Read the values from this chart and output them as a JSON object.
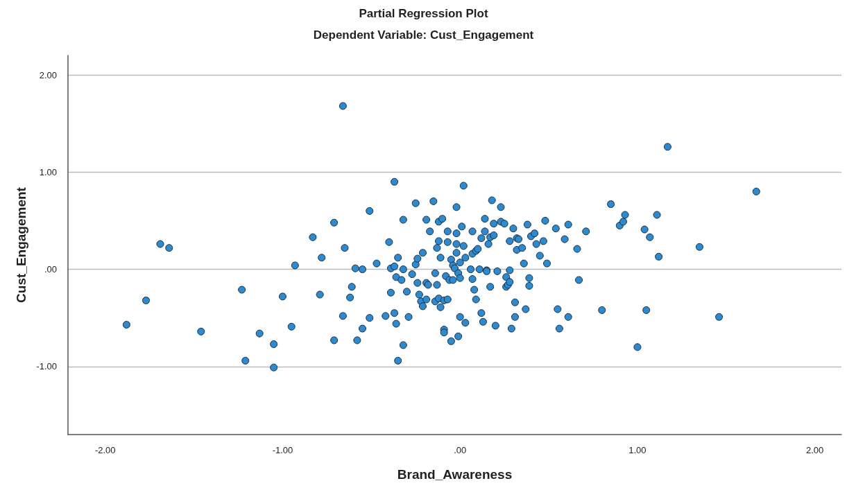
{
  "chart_data": {
    "type": "scatter",
    "title": "Partial Regression Plot",
    "subtitle": "Dependent Variable: Cust_Engagement",
    "xlabel": "Brand_Awareness",
    "ylabel": "Cust_Engagement",
    "xlim": [
      -2.21,
      2.15
    ],
    "ylim": [
      -1.7,
      2.2
    ],
    "xticks": [
      {
        "value": -2,
        "label": "-2.00"
      },
      {
        "value": -1,
        "label": "-1.00"
      },
      {
        "value": 0,
        "label": ".00"
      },
      {
        "value": 1,
        "label": "1.00"
      },
      {
        "value": 2,
        "label": "2.00"
      }
    ],
    "yticks": [
      {
        "value": -1,
        "label": "-1.00"
      },
      {
        "value": 0,
        "label": ".00"
      },
      {
        "value": 1,
        "label": "1.00"
      },
      {
        "value": 2,
        "label": "2.00"
      }
    ],
    "grid": "y",
    "marker": "circle",
    "series": [
      {
        "color": "#2a8ad2",
        "x": [
          -1.88,
          -1.77,
          -1.69,
          -1.64,
          -1.46,
          -1.23,
          -1.21,
          -1.13,
          -1.05,
          -1.05,
          -1.0,
          -0.95,
          -0.93,
          -0.83,
          -0.79,
          -0.78,
          -0.71,
          -0.71,
          -0.66,
          -0.66,
          -0.65,
          -0.62,
          -0.61,
          -0.59,
          -0.58,
          -0.55,
          -0.55,
          -0.51,
          -0.51,
          -0.47,
          -0.42,
          -0.4,
          -0.39,
          -0.39,
          -0.37,
          -0.37,
          -0.37,
          -0.36,
          -0.36,
          -0.35,
          -0.35,
          -0.33,
          -0.32,
          -0.32,
          -0.32,
          -0.3,
          -0.29,
          -0.27,
          -0.25,
          -0.25,
          -0.24,
          -0.24,
          -0.23,
          -0.22,
          -0.21,
          -0.21,
          -0.19,
          -0.19,
          -0.19,
          -0.18,
          -0.17,
          -0.15,
          -0.14,
          -0.14,
          -0.13,
          -0.13,
          -0.12,
          -0.12,
          -0.12,
          -0.11,
          -0.11,
          -0.1,
          -0.09,
          -0.09,
          -0.09,
          -0.08,
          -0.07,
          -0.07,
          -0.07,
          -0.06,
          -0.05,
          -0.05,
          -0.04,
          -0.04,
          -0.03,
          -0.02,
          -0.02,
          -0.02,
          -0.02,
          -0.01,
          -0.01,
          0.0,
          0.0,
          0.0,
          0.01,
          0.02,
          0.02,
          0.03,
          0.03,
          0.06,
          0.07,
          0.07,
          0.07,
          0.08,
          0.09,
          0.09,
          0.1,
          0.11,
          0.12,
          0.12,
          0.13,
          0.14,
          0.14,
          0.15,
          0.15,
          0.16,
          0.17,
          0.17,
          0.18,
          0.19,
          0.19,
          0.2,
          0.21,
          0.23,
          0.23,
          0.25,
          0.26,
          0.26,
          0.27,
          0.28,
          0.28,
          0.28,
          0.29,
          0.3,
          0.31,
          0.31,
          0.32,
          0.32,
          0.33,
          0.35,
          0.36,
          0.37,
          0.38,
          0.39,
          0.39,
          0.4,
          0.42,
          0.43,
          0.45,
          0.47,
          0.48,
          0.49,
          0.54,
          0.55,
          0.56,
          0.59,
          0.61,
          0.61,
          0.66,
          0.67,
          0.71,
          0.8,
          0.85,
          0.9,
          0.92,
          0.93,
          1.0,
          1.04,
          1.05,
          1.07,
          1.11,
          1.12,
          1.17,
          1.35,
          1.46,
          1.67
        ],
        "values": [
          -0.57,
          -0.32,
          0.26,
          0.22,
          -0.64,
          -0.21,
          -0.94,
          -0.66,
          -1.01,
          -0.77,
          -0.28,
          -0.59,
          0.04,
          0.33,
          -0.26,
          0.12,
          0.48,
          -0.73,
          1.68,
          -0.48,
          0.22,
          -0.29,
          -0.18,
          0.01,
          -0.73,
          0.0,
          -0.61,
          0.6,
          -0.5,
          0.06,
          -0.48,
          0.28,
          -0.24,
          0.01,
          0.9,
          -0.45,
          0.03,
          -0.08,
          -0.56,
          0.12,
          -0.94,
          -0.11,
          -0.78,
          0.51,
          0.0,
          -0.23,
          -0.49,
          -0.05,
          0.68,
          0.05,
          -0.14,
          0.11,
          -0.26,
          -0.33,
          0.17,
          -0.38,
          -0.14,
          0.51,
          -0.31,
          -0.16,
          0.39,
          0.7,
          -0.04,
          -0.33,
          0.22,
          -0.16,
          0.29,
          -0.3,
          0.49,
          -0.39,
          0.12,
          0.52,
          -0.62,
          -0.32,
          -0.65,
          -0.07,
          0.39,
          0.28,
          -0.31,
          -0.11,
          -0.74,
          0.1,
          0.04,
          -0.11,
          0.01,
          0.26,
          0.17,
          0.64,
          0.37,
          -0.04,
          -0.69,
          0.07,
          -0.49,
          -0.09,
          0.44,
          0.24,
          0.86,
          -0.55,
          0.12,
          0.0,
          0.39,
          -0.1,
          0.16,
          -0.21,
          0.19,
          -0.31,
          0.21,
          0.0,
          -0.45,
          0.32,
          -0.54,
          0.39,
          0.52,
          -0.01,
          -0.02,
          0.26,
          0.33,
          -0.18,
          0.71,
          0.35,
          0.47,
          -0.58,
          -0.02,
          0.64,
          0.49,
          0.47,
          -0.08,
          -0.18,
          -0.16,
          0.29,
          -0.13,
          -0.01,
          -0.61,
          0.42,
          -0.34,
          -0.49,
          0.2,
          0.32,
          0.31,
          0.22,
          0.06,
          -0.41,
          0.46,
          -0.09,
          -0.17,
          0.34,
          0.37,
          0.26,
          0.14,
          0.29,
          0.5,
          0.06,
          0.42,
          -0.41,
          -0.61,
          0.31,
          -0.49,
          0.46,
          0.21,
          -0.11,
          0.39,
          -0.42,
          0.67,
          0.45,
          0.49,
          0.56,
          -0.8,
          0.41,
          -0.42,
          0.33,
          0.56,
          0.13,
          1.26,
          0.23,
          -0.49,
          0.8
        ]
      }
    ]
  }
}
